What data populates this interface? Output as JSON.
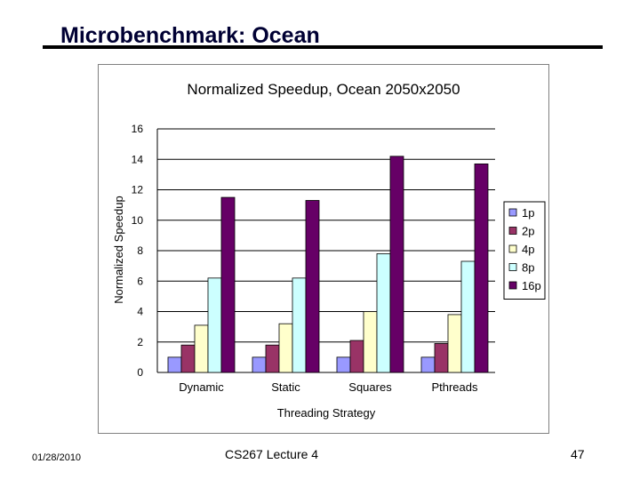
{
  "slide": {
    "title": "Microbenchmark: Ocean",
    "footer_date": "01/28/2010",
    "footer_center": "CS267 Lecture 4",
    "page_number": "47"
  },
  "chart_data": {
    "type": "bar",
    "title": "Normalized Speedup, Ocean 2050x2050",
    "xlabel": "Threading Strategy",
    "ylabel": "Normalized Speedup",
    "ylim": [
      0,
      16
    ],
    "yticks": [
      0,
      2,
      4,
      6,
      8,
      10,
      12,
      14,
      16
    ],
    "grid": true,
    "legend_position": "right",
    "categories": [
      "Dynamic",
      "Static",
      "Squares",
      "Pthreads"
    ],
    "series": [
      {
        "name": "1p",
        "color": "#9999ff",
        "values": [
          1.0,
          1.0,
          1.0,
          1.0
        ]
      },
      {
        "name": "2p",
        "color": "#993366",
        "values": [
          1.8,
          1.8,
          2.1,
          1.9
        ]
      },
      {
        "name": "4p",
        "color": "#ffffcc",
        "values": [
          3.1,
          3.2,
          4.0,
          3.8
        ]
      },
      {
        "name": "8p",
        "color": "#ccffff",
        "values": [
          6.2,
          6.2,
          7.8,
          7.3
        ]
      },
      {
        "name": "16p",
        "color": "#660066",
        "values": [
          11.5,
          11.3,
          14.2,
          13.7
        ]
      }
    ]
  }
}
